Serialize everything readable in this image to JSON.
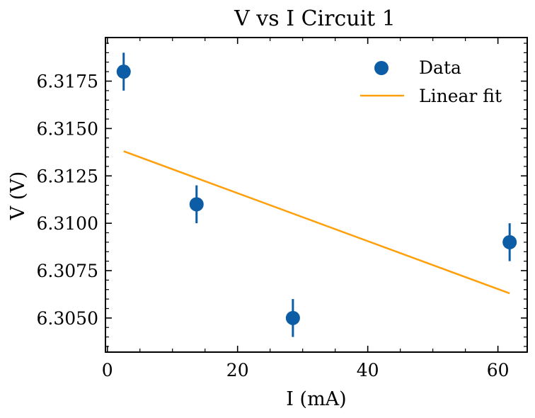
{
  "chart_data": {
    "type": "scatter",
    "title": "V vs I Circuit 1",
    "xlabel": "I (mA)",
    "ylabel": "V (V)",
    "xlim": [
      -0.3,
      64.5
    ],
    "ylim": [
      6.3032,
      6.3198
    ],
    "xticks": [
      0,
      20,
      40,
      60
    ],
    "xtick_labels": [
      "0",
      "20",
      "40",
      "60"
    ],
    "yticks": [
      6.305,
      6.3075,
      6.31,
      6.3125,
      6.315,
      6.3175
    ],
    "ytick_labels": [
      "6.3050",
      "6.3075",
      "6.3100",
      "6.3125",
      "6.3150",
      "6.3175"
    ],
    "x_minor_step": 5,
    "y_minor_step": 0.0005,
    "grid": false,
    "legend_position": "top-right",
    "series": [
      {
        "name": "Data",
        "kind": "errorbar-scatter",
        "color": "#0c5da5",
        "x": [
          2.5,
          13.7,
          28.5,
          61.8
        ],
        "y": [
          6.318,
          6.311,
          6.305,
          6.309
        ],
        "yerr": [
          0.001,
          0.001,
          0.001,
          0.001
        ]
      },
      {
        "name": "Linear fit",
        "kind": "line",
        "color": "#ff9f0a",
        "x": [
          2.5,
          61.8
        ],
        "y": [
          6.3138,
          6.3063
        ]
      }
    ]
  }
}
